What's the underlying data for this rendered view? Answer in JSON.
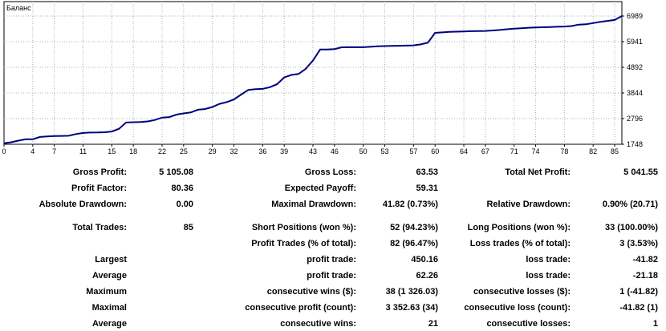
{
  "chart_data": {
    "type": "line",
    "title": "Баланс",
    "xlabel": "",
    "ylabel": "",
    "x_ticks": [
      "0",
      "4",
      "7",
      "11",
      "15",
      "18",
      "22",
      "25",
      "29",
      "32",
      "36",
      "39",
      "43",
      "46",
      "50",
      "53",
      "57",
      "60",
      "64",
      "67",
      "71",
      "74",
      "78",
      "82",
      "85"
    ],
    "y_ticks": [
      "6989",
      "5941",
      "4892",
      "3844",
      "2796",
      "1748"
    ],
    "xlim": [
      0,
      86
    ],
    "ylim": [
      1748,
      6989
    ],
    "grid": true,
    "line_color": "#000080",
    "series": [
      {
        "x": [
          0,
          1,
          2,
          3,
          4,
          5,
          6,
          7,
          8,
          9,
          10,
          11,
          12,
          13,
          14,
          15,
          16,
          17,
          18,
          19,
          20,
          21,
          22,
          23,
          24,
          25,
          26,
          27,
          28,
          29,
          30,
          31,
          32,
          33,
          34,
          35,
          36,
          37,
          38,
          39,
          40,
          41,
          42,
          43,
          44,
          45,
          46,
          47,
          48,
          49,
          50,
          51,
          52,
          53,
          54,
          55,
          56,
          57,
          58,
          59,
          60,
          61,
          62,
          63,
          64,
          65,
          66,
          67,
          68,
          69,
          70,
          71,
          72,
          73,
          74,
          75,
          76,
          77,
          78,
          79,
          80,
          81,
          82,
          83,
          84,
          85,
          86
        ],
        "y": [
          1790,
          1830,
          1895,
          1950,
          1955,
          2045,
          2070,
          2085,
          2090,
          2095,
          2165,
          2210,
          2225,
          2230,
          2240,
          2270,
          2380,
          2640,
          2650,
          2655,
          2680,
          2740,
          2840,
          2860,
          2960,
          3010,
          3050,
          3160,
          3190,
          3270,
          3400,
          3470,
          3580,
          3780,
          3970,
          4000,
          4010,
          4080,
          4200,
          4480,
          4580,
          4620,
          4830,
          5170,
          5620,
          5620,
          5640,
          5710,
          5715,
          5715,
          5715,
          5730,
          5750,
          5760,
          5770,
          5775,
          5780,
          5790,
          5830,
          5900,
          6300,
          6320,
          6340,
          6350,
          6360,
          6370,
          6375,
          6380,
          6400,
          6420,
          6450,
          6470,
          6490,
          6510,
          6520,
          6530,
          6540,
          6550,
          6560,
          6580,
          6640,
          6650,
          6700,
          6750,
          6790,
          6830,
          6989
        ]
      }
    ]
  },
  "stats": [
    {
      "label": "Gross Profit:",
      "value": "5 105.08"
    },
    {
      "label": "Gross Loss:",
      "value": "63.53"
    },
    {
      "label": "Total Net Profit:",
      "value": "5 041.55"
    },
    {
      "label": "Profit Factor:",
      "value": "80.36"
    },
    {
      "label": "Expected Payoff:",
      "value": "59.31"
    },
    {
      "label": "Absolute Drawdown:",
      "value": "0.00"
    },
    {
      "label": "Maximal Drawdown:",
      "value": "41.82 (0.73%)"
    },
    {
      "label": "Relative Drawdown:",
      "value": "0.90% (20.71)"
    },
    {
      "label": "Total Trades:",
      "value": "85"
    },
    {
      "label": "Short Positions (won %):",
      "value": "52 (94.23%)"
    },
    {
      "label": "Long Positions (won %):",
      "value": "33 (100.00%)"
    },
    {
      "label": "Profit Trades (% of total):",
      "value": "82 (96.47%)"
    },
    {
      "label": "Loss trades (% of total):",
      "value": "3 (3.53%)"
    },
    {
      "label": "Largest",
      "value": ""
    },
    {
      "label": "profit trade:",
      "value": "450.16"
    },
    {
      "label": "loss trade:",
      "value": "-41.82"
    },
    {
      "label": "Average",
      "value": ""
    },
    {
      "label": "profit trade:",
      "value": "62.26"
    },
    {
      "label": "loss trade:",
      "value": "-21.18"
    },
    {
      "label": "Maximum",
      "value": ""
    },
    {
      "label": "consecutive wins ($):",
      "value": "38 (1 326.03)"
    },
    {
      "label": "consecutive losses ($):",
      "value": "1 (-41.82)"
    },
    {
      "label": "Maximal",
      "value": ""
    },
    {
      "label": "consecutive profit (count):",
      "value": "3 352.63 (34)"
    },
    {
      "label": "consecutive loss (count):",
      "value": "-41.82 (1)"
    },
    {
      "label": "Average",
      "value": ""
    },
    {
      "label": "consecutive wins:",
      "value": "21"
    },
    {
      "label": "consecutive losses:",
      "value": "1"
    }
  ]
}
